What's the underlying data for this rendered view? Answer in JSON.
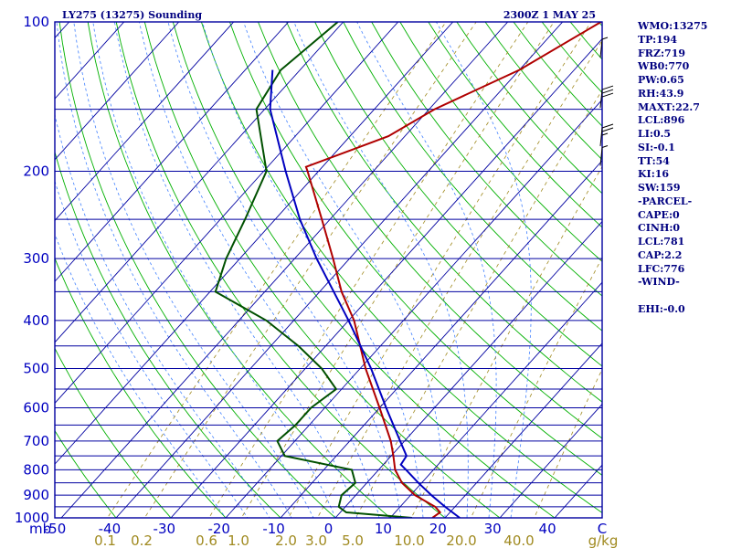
{
  "header": {
    "title": "LY275 (13275) Sounding",
    "valid_time": "2300Z  1 MAY 25"
  },
  "stats": [
    "WMO:13275",
    "TP:194",
    "FRZ:719",
    "WB0:770",
    "PW:0.65",
    "RH:43.9",
    "MAXT:22.7",
    "LCL:896",
    "LI:0.5",
    "SI:-0.1",
    "TT:54",
    "KI:16",
    "SW:159",
    "-PARCEL-",
    "CAPE:0",
    "CINH:0",
    "LCL:781",
    "CAP:2.2",
    "LFC:776",
    "-WIND-",
    "",
    "EHI:-0.0"
  ],
  "colors": {
    "isobar": "#0000a0",
    "isotherm": "#0000a0",
    "dry_adiabat": "#00b000",
    "moist_adiabat": "#4080ff",
    "mixing_ratio": "#a08a20",
    "temperature": "#b00000",
    "dewpoint": "#005000",
    "parcel": "#0000c0",
    "wind_barb": "#000000"
  },
  "chart_data": {
    "type": "line",
    "subtype": "skew-t log-p sounding diagram",
    "y_scale": "log",
    "ylim": [
      1000,
      100
    ],
    "xlim": [
      -50,
      50
    ],
    "pressure_ticks": [
      100,
      200,
      300,
      400,
      500,
      600,
      700,
      800,
      900,
      1000
    ],
    "temperature_ticks": [
      "-50",
      "-40",
      "-30",
      "-20",
      "-10",
      "0",
      "10",
      "20",
      "30",
      "40",
      "C"
    ],
    "y_unit_label": "mb",
    "mixing_ratio_ticks": [
      "0.1",
      "0.2",
      "0.6",
      "1.0",
      "2.0",
      "3.0",
      "5.0",
      "10.0",
      "20.0",
      "40.0"
    ],
    "mixing_ratio_values": [
      0.1,
      0.2,
      0.6,
      1.0,
      2.0,
      3.0,
      5.0,
      10.0,
      20.0,
      40.0
    ],
    "mixing_ratio_unit": "g/kg",
    "isobars_mb": [
      100,
      150,
      200,
      250,
      300,
      350,
      400,
      450,
      500,
      550,
      600,
      650,
      700,
      750,
      800,
      850,
      900,
      950,
      1000
    ],
    "grid": true,
    "series": [
      {
        "key": "temperature",
        "p": [
          1000,
          975,
          950,
          900,
          850,
          800,
          750,
          700,
          600,
          500,
          400,
          350,
          300,
          250,
          200,
          196,
          170,
          150,
          125,
          100
        ],
        "t": [
          17.7,
          18.2,
          16.4,
          10.8,
          6.4,
          3.0,
          0.4,
          -2.5,
          -10.0,
          -19.0,
          -29.0,
          -36.0,
          -43.0,
          -51.5,
          -62.0,
          -63.0,
          -53.0,
          -49.0,
          -40.0,
          -33.0
        ]
      },
      {
        "key": "dewpoint",
        "p": [
          1000,
          975,
          950,
          900,
          850,
          800,
          750,
          700,
          650,
          600,
          550,
          500,
          450,
          400,
          350,
          300,
          250,
          200,
          150,
          125,
          100
        ],
        "t": [
          14.0,
          1.1,
          -1.2,
          -2.6,
          -2.1,
          -4.9,
          -19.4,
          -23.2,
          -22.5,
          -22.5,
          -21.0,
          -27.0,
          -35.0,
          -45.0,
          -59.0,
          -62.5,
          -65.5,
          -69.5,
          -81.5,
          -83.5,
          -81.0
        ]
      },
      {
        "key": "parcel",
        "p": [
          1000,
          950,
          900,
          850,
          800,
          781,
          750,
          700,
          600,
          500,
          400,
          300,
          250,
          200,
          150,
          125
        ],
        "t": [
          22.7,
          18.2,
          13.8,
          9.4,
          5.0,
          3.2,
          2.8,
          -0.8,
          -8.8,
          -18.0,
          -30.0,
          -46.0,
          -55.5,
          -66.0,
          -79.0,
          -85.0
        ]
      }
    ],
    "wind_barbs": [
      {
        "p": 118,
        "knots": 5
      },
      {
        "p": 149,
        "knots": 30
      },
      {
        "p": 178,
        "knots": 25
      },
      {
        "p": 195,
        "knots": 5
      }
    ]
  }
}
